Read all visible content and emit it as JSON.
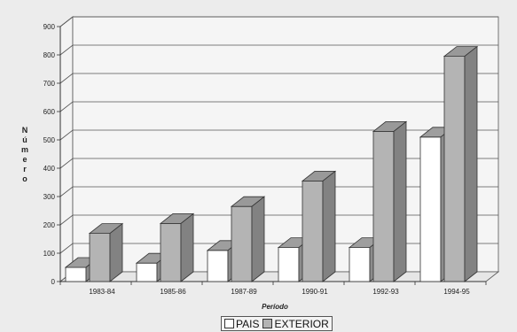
{
  "chart_data": {
    "type": "bar",
    "title": "",
    "xlabel": "Período",
    "ylabel": "Número",
    "categories": [
      "1983-84",
      "1985-86",
      "1987-89",
      "1990-91",
      "1992-93",
      "1994-95"
    ],
    "series": [
      {
        "name": "PAIS",
        "color": "#ffffff",
        "values": [
          50,
          65,
          110,
          120,
          120,
          510
        ]
      },
      {
        "name": "EXTERIOR",
        "color": "#b4b4b4",
        "values": [
          170,
          205,
          265,
          355,
          530,
          795
        ]
      }
    ],
    "ylim": [
      0,
      900
    ],
    "yticks": [
      0,
      100,
      200,
      300,
      400,
      500,
      600,
      700,
      800,
      900
    ],
    "grid": true,
    "legend_position": "bottom"
  }
}
